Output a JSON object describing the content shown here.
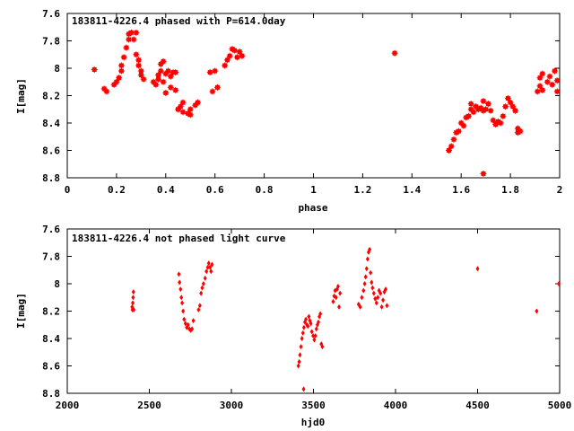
{
  "chart_data": [
    {
      "type": "scatter",
      "title": "183811-4226.4 phased with P=614.0day",
      "xlabel": "phase",
      "ylabel": "I[mag]",
      "xlim": [
        0,
        2
      ],
      "ylim": [
        7.6,
        8.8
      ],
      "y_inverted": true,
      "xticks": [
        0,
        0.2,
        0.4,
        0.6,
        0.8,
        1,
        1.2,
        1.4,
        1.6,
        1.8,
        2
      ],
      "xtick_labels": [
        "0",
        "0.2",
        "0.4",
        "0.6",
        "0.8",
        "1",
        "1.2",
        "1.4",
        "1.6",
        "1.8",
        "2"
      ],
      "yticks": [
        7.6,
        7.8,
        8.0,
        8.2,
        8.4,
        8.6,
        8.8
      ],
      "ytick_labels": [
        "7.6",
        "7.8",
        "8",
        "8.2",
        "8.4",
        "8.6",
        "8.8"
      ],
      "grid": false,
      "marker_color": "#ff0000",
      "marker": "plus-box",
      "points": [
        [
          0.11,
          8.01
        ],
        [
          0.15,
          8.15
        ],
        [
          0.16,
          8.17
        ],
        [
          0.19,
          8.12
        ],
        [
          0.2,
          8.1
        ],
        [
          0.21,
          8.07
        ],
        [
          0.22,
          8.02
        ],
        [
          0.22,
          7.98
        ],
        [
          0.23,
          7.92
        ],
        [
          0.24,
          7.85
        ],
        [
          0.25,
          7.79
        ],
        [
          0.25,
          7.75
        ],
        [
          0.26,
          7.74
        ],
        [
          0.27,
          7.79
        ],
        [
          0.28,
          7.74
        ],
        [
          0.28,
          7.9
        ],
        [
          0.29,
          7.94
        ],
        [
          0.29,
          7.98
        ],
        [
          0.3,
          8.02
        ],
        [
          0.3,
          8.05
        ],
        [
          0.31,
          8.08
        ],
        [
          0.35,
          8.1
        ],
        [
          0.36,
          8.12
        ],
        [
          0.37,
          8.08
        ],
        [
          0.37,
          8.05
        ],
        [
          0.38,
          8.02
        ],
        [
          0.38,
          7.97
        ],
        [
          0.39,
          7.95
        ],
        [
          0.39,
          8.1
        ],
        [
          0.4,
          8.18
        ],
        [
          0.4,
          8.04
        ],
        [
          0.41,
          8.02
        ],
        [
          0.42,
          8.06
        ],
        [
          0.42,
          8.14
        ],
        [
          0.43,
          8.03
        ],
        [
          0.44,
          8.03
        ],
        [
          0.44,
          8.16
        ],
        [
          0.45,
          8.3
        ],
        [
          0.46,
          8.28
        ],
        [
          0.47,
          8.32
        ],
        [
          0.47,
          8.25
        ],
        [
          0.49,
          8.33
        ],
        [
          0.5,
          8.34
        ],
        [
          0.5,
          8.3
        ],
        [
          0.52,
          8.27
        ],
        [
          0.53,
          8.25
        ],
        [
          0.58,
          8.03
        ],
        [
          0.59,
          8.17
        ],
        [
          0.6,
          8.02
        ],
        [
          0.61,
          8.14
        ],
        [
          0.64,
          7.98
        ],
        [
          0.65,
          7.94
        ],
        [
          0.66,
          7.91
        ],
        [
          0.67,
          7.86
        ],
        [
          0.68,
          7.87
        ],
        [
          0.69,
          7.92
        ],
        [
          0.7,
          7.88
        ],
        [
          0.71,
          7.91
        ],
        [
          1.33,
          7.89
        ],
        [
          1.55,
          8.6
        ],
        [
          1.56,
          8.57
        ],
        [
          1.57,
          8.52
        ],
        [
          1.58,
          8.47
        ],
        [
          1.59,
          8.46
        ],
        [
          1.6,
          8.4
        ],
        [
          1.61,
          8.42
        ],
        [
          1.62,
          8.36
        ],
        [
          1.63,
          8.35
        ],
        [
          1.64,
          8.3
        ],
        [
          1.64,
          8.26
        ],
        [
          1.65,
          8.32
        ],
        [
          1.66,
          8.28
        ],
        [
          1.67,
          8.3
        ],
        [
          1.68,
          8.29
        ],
        [
          1.69,
          8.31
        ],
        [
          1.69,
          8.24
        ],
        [
          1.7,
          8.3
        ],
        [
          1.71,
          8.26
        ],
        [
          1.72,
          8.31
        ],
        [
          1.73,
          8.38
        ],
        [
          1.74,
          8.41
        ],
        [
          1.75,
          8.39
        ],
        [
          1.76,
          8.4
        ],
        [
          1.77,
          8.35
        ],
        [
          1.78,
          8.28
        ],
        [
          1.79,
          8.22
        ],
        [
          1.8,
          8.25
        ],
        [
          1.81,
          8.28
        ],
        [
          1.82,
          8.31
        ],
        [
          1.83,
          8.44
        ],
        [
          1.83,
          8.47
        ],
        [
          1.84,
          8.46
        ],
        [
          1.69,
          8.77
        ],
        [
          1.91,
          8.17
        ],
        [
          1.92,
          8.13
        ],
        [
          1.92,
          8.07
        ],
        [
          1.93,
          8.04
        ],
        [
          1.93,
          8.16
        ],
        [
          1.95,
          8.1
        ],
        [
          1.96,
          8.06
        ],
        [
          1.97,
          8.12
        ],
        [
          1.98,
          8.02
        ],
        [
          1.99,
          8.09
        ],
        [
          1.99,
          8.17
        ]
      ]
    },
    {
      "type": "scatter",
      "title": "183811-4226.4 not phased light curve",
      "xlabel": "hjd0",
      "ylabel": "I[mag]",
      "xlim": [
        2000,
        5000
      ],
      "ylim": [
        7.6,
        8.8
      ],
      "y_inverted": true,
      "xticks": [
        2000,
        2500,
        3000,
        3500,
        4000,
        4500,
        5000
      ],
      "xtick_labels": [
        "2000",
        "2500",
        "3000",
        "3500",
        "4000",
        "4500",
        "5000"
      ],
      "yticks": [
        7.6,
        7.8,
        8.0,
        8.2,
        8.4,
        8.6,
        8.8
      ],
      "ytick_labels": [
        "7.6",
        "7.8",
        "8",
        "8.2",
        "8.4",
        "8.6",
        "8.8"
      ],
      "grid": false,
      "marker_color": "#ff0000",
      "marker": "diamond",
      "points": [
        [
          2395,
          8.17
        ],
        [
          2397,
          8.19
        ],
        [
          2399,
          8.14
        ],
        [
          2401,
          8.1
        ],
        [
          2403,
          8.06
        ],
        [
          2405,
          8.19
        ],
        [
          2680,
          7.93
        ],
        [
          2684,
          7.99
        ],
        [
          2690,
          8.04
        ],
        [
          2695,
          8.1
        ],
        [
          2700,
          8.14
        ],
        [
          2706,
          8.2
        ],
        [
          2712,
          8.26
        ],
        [
          2720,
          8.29
        ],
        [
          2728,
          8.32
        ],
        [
          2736,
          8.3
        ],
        [
          2744,
          8.33
        ],
        [
          2752,
          8.34
        ],
        [
          2760,
          8.33
        ],
        [
          2768,
          8.27
        ],
        [
          2800,
          8.19
        ],
        [
          2808,
          8.16
        ],
        [
          2815,
          8.07
        ],
        [
          2822,
          8.03
        ],
        [
          2830,
          8.0
        ],
        [
          2840,
          7.96
        ],
        [
          2848,
          7.91
        ],
        [
          2856,
          7.88
        ],
        [
          2862,
          7.85
        ],
        [
          2870,
          7.88
        ],
        [
          2876,
          7.91
        ],
        [
          2882,
          7.86
        ],
        [
          3408,
          8.6
        ],
        [
          3413,
          8.57
        ],
        [
          3418,
          8.52
        ],
        [
          3424,
          8.46
        ],
        [
          3430,
          8.4
        ],
        [
          3436,
          8.36
        ],
        [
          3442,
          8.32
        ],
        [
          3448,
          8.28
        ],
        [
          3454,
          8.26
        ],
        [
          3460,
          8.3
        ],
        [
          3466,
          8.31
        ],
        [
          3472,
          8.24
        ],
        [
          3478,
          8.27
        ],
        [
          3484,
          8.29
        ],
        [
          3490,
          8.35
        ],
        [
          3498,
          8.38
        ],
        [
          3505,
          8.41
        ],
        [
          3512,
          8.38
        ],
        [
          3518,
          8.33
        ],
        [
          3524,
          8.3
        ],
        [
          3530,
          8.28
        ],
        [
          3536,
          8.24
        ],
        [
          3542,
          8.22
        ],
        [
          3548,
          8.44
        ],
        [
          3554,
          8.46
        ],
        [
          3440,
          8.77
        ],
        [
          3620,
          8.13
        ],
        [
          3626,
          8.09
        ],
        [
          3632,
          8.05
        ],
        [
          3638,
          8.1
        ],
        [
          3644,
          8.04
        ],
        [
          3650,
          8.02
        ],
        [
          3656,
          8.17
        ],
        [
          3662,
          8.07
        ],
        [
          3775,
          8.15
        ],
        [
          3785,
          8.17
        ],
        [
          3795,
          8.1
        ],
        [
          3805,
          8.05
        ],
        [
          3812,
          8.0
        ],
        [
          3818,
          7.95
        ],
        [
          3824,
          7.89
        ],
        [
          3830,
          7.82
        ],
        [
          3836,
          7.77
        ],
        [
          3842,
          7.75
        ],
        [
          3848,
          7.92
        ],
        [
          3854,
          7.99
        ],
        [
          3860,
          8.03
        ],
        [
          3868,
          8.07
        ],
        [
          3876,
          8.11
        ],
        [
          3884,
          8.14
        ],
        [
          3892,
          8.1
        ],
        [
          3900,
          8.05
        ],
        [
          3908,
          8.07
        ],
        [
          3916,
          8.17
        ],
        [
          3924,
          8.12
        ],
        [
          3932,
          8.06
        ],
        [
          3940,
          8.04
        ],
        [
          3948,
          8.16
        ],
        [
          4500,
          7.89
        ],
        [
          4860,
          8.2
        ],
        [
          4995,
          8.0
        ]
      ]
    }
  ]
}
